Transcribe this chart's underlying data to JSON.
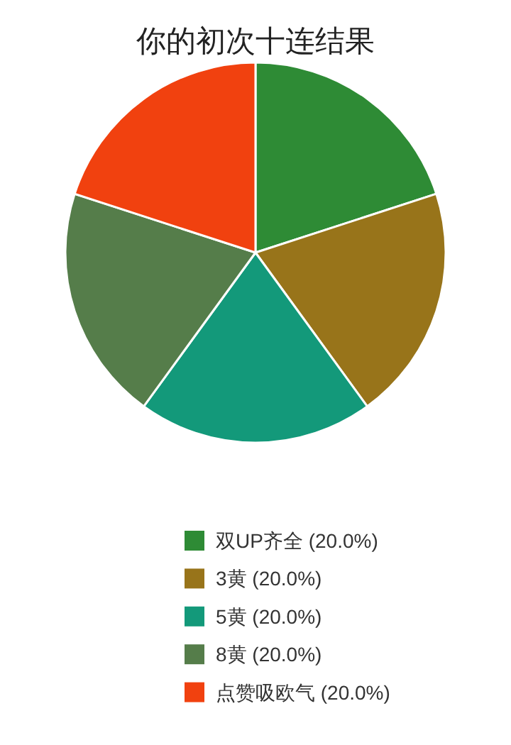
{
  "chart_data": {
    "type": "pie",
    "title": "你的初次十连结果",
    "categories": [
      "双UP齐全",
      "3黄",
      "5黄",
      "8黄",
      "点赞吸欧气"
    ],
    "values": [
      20,
      20,
      20,
      20,
      20
    ],
    "value_labels": [
      "(20.0%)",
      "(20.0%)",
      "(20.0%)",
      "(20.0%)",
      "(20.0%)"
    ],
    "colors": [
      "#2e8b35",
      "#98741a",
      "#13997a",
      "#557d4a",
      "#f1410f"
    ],
    "legend": "bottom"
  }
}
